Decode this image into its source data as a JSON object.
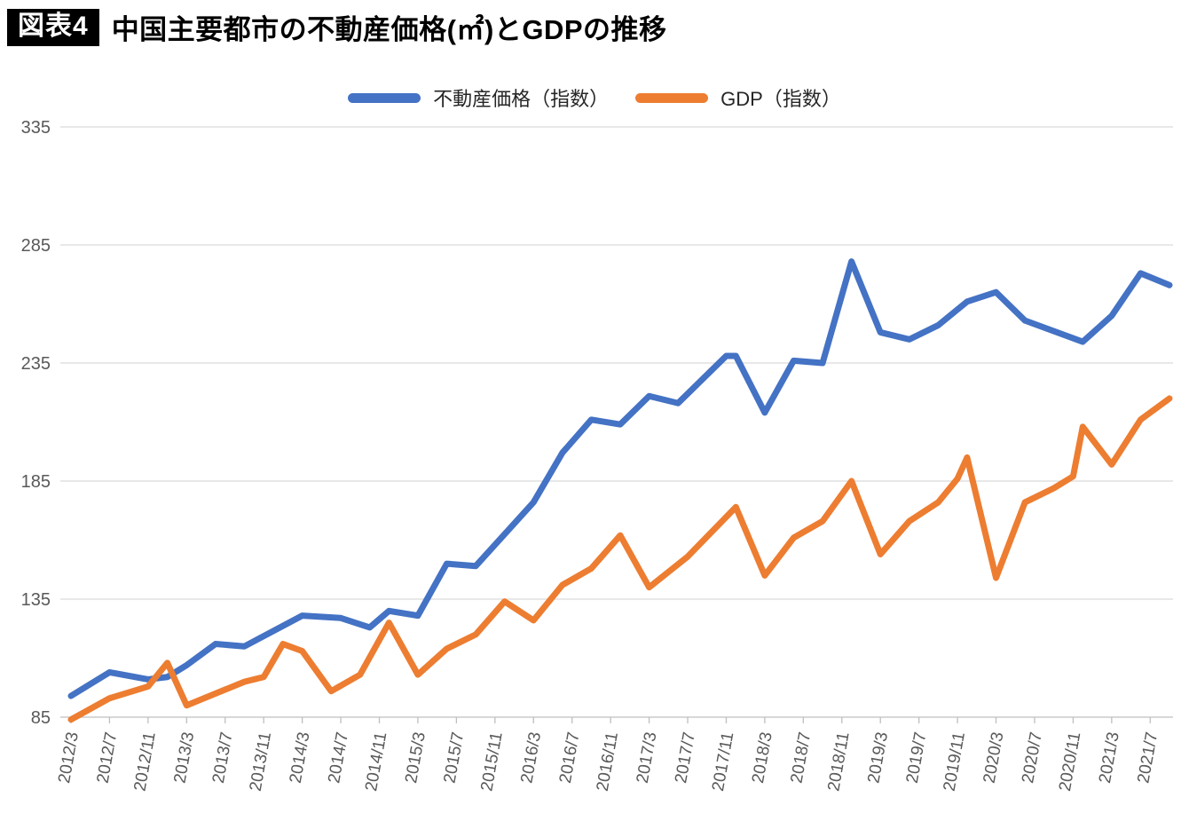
{
  "title": {
    "badge": "図表4",
    "text": "中国主要都市の不動産価格(㎡)とGDPの推移"
  },
  "legend": {
    "items": [
      {
        "label": "不動産価格（指数）",
        "color": "#4472C4"
      },
      {
        "label": "GDP（指数）",
        "color": "#ED7D31"
      }
    ]
  },
  "chart_data": {
    "type": "line",
    "title": "中国主要都市の不動産価格(㎡)とGDPの推移",
    "x_unit": "year/month",
    "x_range": [
      "2012/3",
      "2021/9"
    ],
    "x_tick_labels": [
      "2012/3",
      "2012/7",
      "2012/11",
      "2013/3",
      "2013/7",
      "2013/11",
      "2014/3",
      "2014/7",
      "2014/11",
      "2015/3",
      "2015/7",
      "2015/11",
      "2016/3",
      "2016/7",
      "2016/11",
      "2017/3",
      "2017/7",
      "2017/11",
      "2018/3",
      "2018/7",
      "2018/11",
      "2019/3",
      "2019/7",
      "2019/11",
      "2020/3",
      "2020/7",
      "2020/11",
      "2021/3",
      "2021/7"
    ],
    "y_ticks": [
      85,
      135,
      185,
      235,
      285,
      335
    ],
    "ylim": [
      85,
      335
    ],
    "grid": true,
    "legend_position": "top",
    "colors": {
      "grid": "#D9D9D9",
      "axis": "#BFBFBF",
      "tick_text": "#595959"
    },
    "series": [
      {
        "name": "不動産価格（指数）",
        "color": "#4472C4",
        "points": [
          [
            "2012/3",
            94
          ],
          [
            "2012/7",
            104
          ],
          [
            "2012/11",
            101
          ],
          [
            "2013/1",
            102
          ],
          [
            "2013/3",
            107
          ],
          [
            "2013/6",
            116
          ],
          [
            "2013/9",
            115
          ],
          [
            "2014/3",
            128
          ],
          [
            "2014/7",
            127
          ],
          [
            "2014/10",
            123
          ],
          [
            "2014/12",
            130
          ],
          [
            "2015/3",
            128
          ],
          [
            "2015/6",
            150
          ],
          [
            "2015/9",
            149
          ],
          [
            "2016/3",
            176
          ],
          [
            "2016/6",
            197
          ],
          [
            "2016/9",
            211
          ],
          [
            "2016/12",
            209
          ],
          [
            "2017/3",
            221
          ],
          [
            "2017/6",
            218
          ],
          [
            "2017/11",
            238
          ],
          [
            "2017/12",
            238
          ],
          [
            "2018/3",
            214
          ],
          [
            "2018/6",
            236
          ],
          [
            "2018/9",
            235
          ],
          [
            "2018/12",
            278
          ],
          [
            "2019/3",
            248
          ],
          [
            "2019/6",
            245
          ],
          [
            "2019/9",
            251
          ],
          [
            "2019/12",
            261
          ],
          [
            "2020/3",
            265
          ],
          [
            "2020/6",
            253
          ],
          [
            "2020/12",
            244
          ],
          [
            "2021/3",
            255
          ],
          [
            "2021/6",
            273
          ],
          [
            "2021/9",
            268
          ]
        ]
      },
      {
        "name": "GDP（指数）",
        "color": "#ED7D31",
        "points": [
          [
            "2012/3",
            84
          ],
          [
            "2012/7",
            93
          ],
          [
            "2012/11",
            98
          ],
          [
            "2013/1",
            108
          ],
          [
            "2013/3",
            90
          ],
          [
            "2013/6",
            95
          ],
          [
            "2013/9",
            100
          ],
          [
            "2013/11",
            102
          ],
          [
            "2014/1",
            116
          ],
          [
            "2014/3",
            113
          ],
          [
            "2014/6",
            96
          ],
          [
            "2014/9",
            103
          ],
          [
            "2014/12",
            125
          ],
          [
            "2015/3",
            103
          ],
          [
            "2015/6",
            114
          ],
          [
            "2015/9",
            120
          ],
          [
            "2015/12",
            134
          ],
          [
            "2016/3",
            126
          ],
          [
            "2016/6",
            141
          ],
          [
            "2016/9",
            148
          ],
          [
            "2016/12",
            162
          ],
          [
            "2017/3",
            140
          ],
          [
            "2017/7",
            153
          ],
          [
            "2017/12",
            174
          ],
          [
            "2018/3",
            145
          ],
          [
            "2018/6",
            161
          ],
          [
            "2018/9",
            168
          ],
          [
            "2018/12",
            185
          ],
          [
            "2019/3",
            154
          ],
          [
            "2019/6",
            168
          ],
          [
            "2019/9",
            176
          ],
          [
            "2019/11",
            186
          ],
          [
            "2019/12",
            195
          ],
          [
            "2020/3",
            144
          ],
          [
            "2020/6",
            176
          ],
          [
            "2020/9",
            182
          ],
          [
            "2020/11",
            187
          ],
          [
            "2020/12",
            208
          ],
          [
            "2021/3",
            192
          ],
          [
            "2021/6",
            211
          ],
          [
            "2021/9",
            220
          ]
        ]
      }
    ]
  }
}
